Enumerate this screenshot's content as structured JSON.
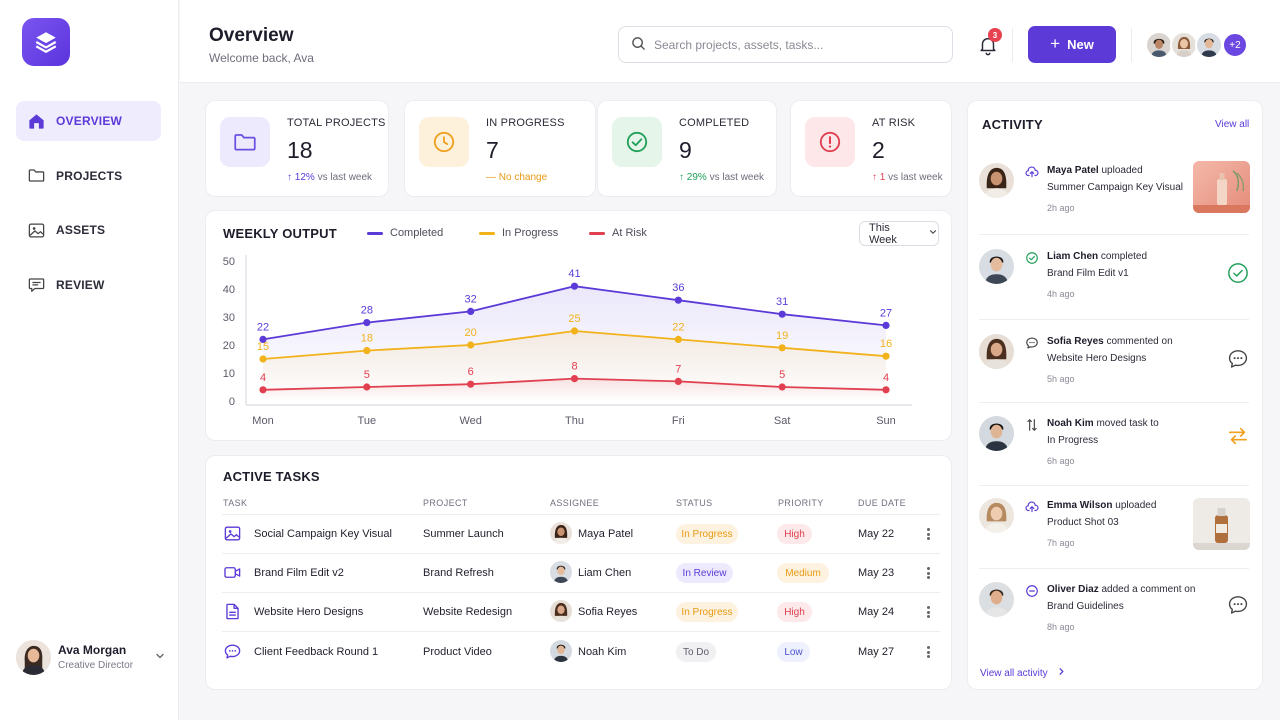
{
  "sidebar": {
    "items": [
      {
        "label": "OVERVIEW",
        "icon": "home-icon",
        "active": true
      },
      {
        "label": "PROJECTS",
        "icon": "folder-icon",
        "active": false
      },
      {
        "label": "ASSETS",
        "icon": "image-icon",
        "active": false
      },
      {
        "label": "REVIEW",
        "icon": "comment-icon",
        "active": false
      }
    ],
    "user": {
      "name": "Ava Morgan",
      "role": "Creative Director"
    }
  },
  "header": {
    "title": "Overview",
    "subtitle": "Welcome back, Ava",
    "search_placeholder": "Search projects, assets, tasks...",
    "notification_count": "3",
    "new_label": "New",
    "team_more": "+2"
  },
  "stats": [
    {
      "label": "TOTAL PROJECTS",
      "value": "18",
      "change_value": "12%",
      "change_text": "vs last week",
      "trend": "up",
      "color": "#6b4fe0"
    },
    {
      "label": "IN PROGRESS",
      "value": "7",
      "change_value": "No change",
      "change_text": "",
      "trend": "flat",
      "color": "#f0a020"
    },
    {
      "label": "COMPLETED",
      "value": "9",
      "change_value": "29%",
      "change_text": "vs last week",
      "trend": "up",
      "color": "#22a05a"
    },
    {
      "label": "AT RISK",
      "value": "2",
      "change_value": "1",
      "change_text": "vs last week",
      "trend": "up",
      "color": "#e04050"
    }
  ],
  "chart": {
    "title": "WEEKLY OUTPUT",
    "period": "This Week"
  },
  "chart_data": {
    "type": "line",
    "x": [
      "Mon",
      "Tue",
      "Wed",
      "Thu",
      "Fri",
      "Sat",
      "Sun"
    ],
    "series": [
      {
        "name": "Completed",
        "values": [
          22,
          28,
          32,
          41,
          36,
          31,
          27
        ],
        "color": "#5b3ad8"
      },
      {
        "name": "In Progress",
        "values": [
          15,
          18,
          20,
          25,
          22,
          19,
          16
        ],
        "color": "#f2b21b"
      },
      {
        "name": "At Risk",
        "values": [
          4,
          5,
          6,
          8,
          7,
          5,
          4
        ],
        "color": "#e0404f"
      }
    ],
    "ylim": [
      0,
      50
    ],
    "yticks": [
      0,
      10,
      20,
      30,
      40,
      50
    ],
    "legend": "top"
  },
  "tasks": {
    "title": "ACTIVE TASKS",
    "columns": [
      "TASK",
      "PROJECT",
      "ASSIGNEE",
      "STATUS",
      "PRIORITY",
      "DUE DATE"
    ],
    "rows": [
      {
        "task": "Social Campaign Key Visual",
        "icon": "image-icon",
        "project": "Summer Launch",
        "assignee": "Maya Patel",
        "status": "In Progress",
        "priority": "High",
        "due": "May 22"
      },
      {
        "task": "Brand Film Edit v2",
        "icon": "video-icon",
        "project": "Brand Refresh",
        "assignee": "Liam Chen",
        "status": "In Review",
        "priority": "Medium",
        "due": "May 23"
      },
      {
        "task": "Website Hero Designs",
        "icon": "document-icon",
        "project": "Website Redesign",
        "assignee": "Sofia Reyes",
        "status": "In Progress",
        "priority": "High",
        "due": "May 24"
      },
      {
        "task": "Client Feedback Round 1",
        "icon": "comment-icon",
        "project": "Product Video",
        "assignee": "Noah Kim",
        "status": "To Do",
        "priority": "Low",
        "due": "May 27"
      }
    ]
  },
  "activity": {
    "title": "ACTIVITY",
    "view_all": "View all",
    "footer": "View all activity",
    "items": [
      {
        "name": "Maya Patel",
        "action": "uploaded",
        "object": "Summer Campaign Key Visual",
        "time": "2h ago",
        "icon": "upload-icon"
      },
      {
        "name": "Liam Chen",
        "action": "completed",
        "object": "Brand Film Edit v1",
        "time": "4h ago",
        "icon": "check-circle-icon"
      },
      {
        "name": "Sofia Reyes",
        "action": "commented on",
        "object": "Website Hero Designs",
        "time": "5h ago",
        "icon": "comment-icon"
      },
      {
        "name": "Noah Kim",
        "action": "moved task to",
        "object": "In Progress",
        "time": "6h ago",
        "icon": "move-icon"
      },
      {
        "name": "Emma Wilson",
        "action": "uploaded",
        "object": "Product Shot 03",
        "time": "7h ago",
        "icon": "upload-icon"
      },
      {
        "name": "Oliver Diaz",
        "action": "added a comment on",
        "object": "Brand Guidelines",
        "time": "8h ago",
        "icon": "comment-icon"
      }
    ]
  }
}
